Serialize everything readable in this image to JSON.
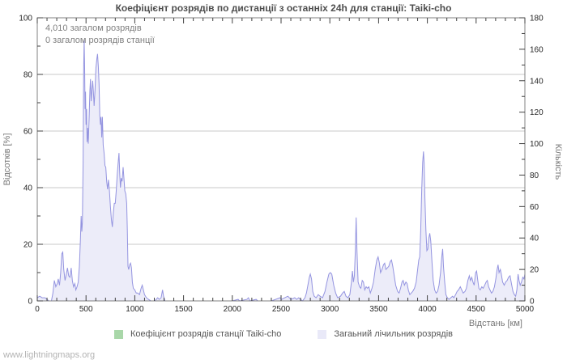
{
  "title": "Коефіцієнт розрядів по дистанції з останніх 24h для станції: Taiki-cho",
  "annotations": [
    "4,010 загалом розрядів",
    "0 загалом розрядів станції"
  ],
  "footer": {
    "link": "www.lightningmaps.org"
  },
  "legend": [
    {
      "label": "Коефіцієнт розрядів станції Taiki-cho",
      "color": "#a9d7a9"
    },
    {
      "label": "Загаьний лічильник розрядів",
      "color": "#e9e9f8"
    }
  ],
  "chart_data": {
    "type": "area",
    "title": "Коефіцієнт розрядів по дистанції з останніх 24h для станції: Taiki-cho",
    "xlabel": "Відстань  [км]",
    "ylabel": "Відсотків  [%]",
    "y2label": "Кількість",
    "xlim": [
      0,
      5000
    ],
    "x_major": 500,
    "x_minor": 100,
    "ylim": [
      0,
      100
    ],
    "y_major": 20,
    "y_minor": 10,
    "y2lim": [
      0,
      180
    ],
    "y2_major": 20,
    "y2_minor": 10,
    "grid": "horizontal-major-left-axis",
    "legend_position": "bottom-center",
    "colors": {
      "line": "#9494e0",
      "fill": "#ececf9",
      "grid": "#c9c9c9",
      "frame": "#808080",
      "tick": "#404040",
      "tick_label": "#262626"
    },
    "series": [
      {
        "name": "Коефіцієнт розрядів станції Taiki-cho",
        "axis": "left",
        "color": "#a9d7a9",
        "points": []
      },
      {
        "name": "Загаьний лічильник розрядів",
        "axis": "right",
        "color": "#9494e0",
        "points": [
          [
            0,
            2
          ],
          [
            25,
            3
          ],
          [
            50,
            2
          ],
          [
            80,
            2
          ],
          [
            100,
            1
          ],
          [
            120,
            0
          ],
          [
            145,
            0
          ],
          [
            160,
            5
          ],
          [
            175,
            13
          ],
          [
            190,
            9
          ],
          [
            205,
            11
          ],
          [
            215,
            14
          ],
          [
            228,
            10
          ],
          [
            240,
            18
          ],
          [
            252,
            30
          ],
          [
            262,
            31
          ],
          [
            272,
            20
          ],
          [
            285,
            13
          ],
          [
            298,
            17
          ],
          [
            310,
            21
          ],
          [
            322,
            16
          ],
          [
            335,
            15
          ],
          [
            348,
            21
          ],
          [
            360,
            13
          ],
          [
            372,
            9
          ],
          [
            385,
            11
          ],
          [
            395,
            7
          ],
          [
            408,
            9
          ],
          [
            420,
            12
          ],
          [
            432,
            22
          ],
          [
            442,
            38
          ],
          [
            450,
            54
          ],
          [
            457,
            44
          ],
          [
            463,
            50
          ],
          [
            470,
            88
          ],
          [
            476,
            148
          ],
          [
            481,
            166
          ],
          [
            486,
            148
          ],
          [
            490,
            122
          ],
          [
            495,
            133
          ],
          [
            500,
            112
          ],
          [
            506,
            122
          ],
          [
            511,
            101
          ],
          [
            517,
            110
          ],
          [
            523,
            100
          ],
          [
            532,
            118
          ],
          [
            540,
            134
          ],
          [
            546,
            141
          ],
          [
            553,
            127
          ],
          [
            560,
            133
          ],
          [
            568,
            140
          ],
          [
            575,
            134
          ],
          [
            583,
            124
          ],
          [
            592,
            134
          ],
          [
            601,
            148
          ],
          [
            611,
            154
          ],
          [
            618,
            157
          ],
          [
            626,
            149
          ],
          [
            634,
            138
          ],
          [
            641,
            118
          ],
          [
            648,
            112
          ],
          [
            654,
            117
          ],
          [
            661,
            104
          ],
          [
            668,
            117
          ],
          [
            676,
            99
          ],
          [
            685,
            94
          ],
          [
            694,
            86
          ],
          [
            703,
            85
          ],
          [
            712,
            76
          ],
          [
            721,
            71
          ],
          [
            730,
            77
          ],
          [
            740,
            70
          ],
          [
            750,
            60
          ],
          [
            760,
            52
          ],
          [
            770,
            47
          ],
          [
            780,
            56
          ],
          [
            790,
            62
          ],
          [
            800,
            62
          ],
          [
            810,
            70
          ],
          [
            820,
            80
          ],
          [
            830,
            88
          ],
          [
            838,
            94
          ],
          [
            846,
            80
          ],
          [
            853,
            72
          ],
          [
            861,
            78
          ],
          [
            870,
            76
          ],
          [
            880,
            85
          ],
          [
            889,
            78
          ],
          [
            898,
            70
          ],
          [
            908,
            68
          ],
          [
            917,
            62
          ],
          [
            924,
            45
          ],
          [
            930,
            22
          ],
          [
            938,
            20
          ],
          [
            948,
            23
          ],
          [
            957,
            24
          ],
          [
            966,
            21
          ],
          [
            975,
            12
          ],
          [
            985,
            8
          ],
          [
            1000,
            7
          ],
          [
            1015,
            5
          ],
          [
            1030,
            5
          ],
          [
            1048,
            4
          ],
          [
            1065,
            8
          ],
          [
            1076,
            10
          ],
          [
            1088,
            7
          ],
          [
            1100,
            4
          ],
          [
            1120,
            2
          ],
          [
            1140,
            1
          ],
          [
            1165,
            0
          ],
          [
            1200,
            0
          ],
          [
            1220,
            1
          ],
          [
            1235,
            2
          ],
          [
            1250,
            1
          ],
          [
            1270,
            2
          ],
          [
            1285,
            7
          ],
          [
            1295,
            3
          ],
          [
            1310,
            0
          ],
          [
            1600,
            0
          ],
          [
            2000,
            0
          ],
          [
            2060,
            1
          ],
          [
            2075,
            0
          ],
          [
            2150,
            1
          ],
          [
            2165,
            2
          ],
          [
            2180,
            0
          ],
          [
            2245,
            1
          ],
          [
            2260,
            0
          ],
          [
            2400,
            0
          ],
          [
            2490,
            2
          ],
          [
            2505,
            1
          ],
          [
            2570,
            3
          ],
          [
            2585,
            2
          ],
          [
            2600,
            1
          ],
          [
            2640,
            2
          ],
          [
            2660,
            1
          ],
          [
            2680,
            2
          ],
          [
            2700,
            1
          ],
          [
            2720,
            0
          ],
          [
            2745,
            2
          ],
          [
            2760,
            5
          ],
          [
            2775,
            10
          ],
          [
            2790,
            15
          ],
          [
            2800,
            17
          ],
          [
            2812,
            14
          ],
          [
            2825,
            6
          ],
          [
            2840,
            3
          ],
          [
            2860,
            2
          ],
          [
            2880,
            4
          ],
          [
            2900,
            3
          ],
          [
            2925,
            2
          ],
          [
            2950,
            6
          ],
          [
            2970,
            12
          ],
          [
            2990,
            17
          ],
          [
            3005,
            18
          ],
          [
            3020,
            17
          ],
          [
            3040,
            10
          ],
          [
            3060,
            5
          ],
          [
            3080,
            2
          ],
          [
            3110,
            3
          ],
          [
            3130,
            5
          ],
          [
            3148,
            6
          ],
          [
            3165,
            3
          ],
          [
            3185,
            2
          ],
          [
            3205,
            4
          ],
          [
            3222,
            12
          ],
          [
            3232,
            19
          ],
          [
            3242,
            12
          ],
          [
            3252,
            16
          ],
          [
            3262,
            32
          ],
          [
            3270,
            53
          ],
          [
            3278,
            32
          ],
          [
            3290,
            12
          ],
          [
            3305,
            9
          ],
          [
            3318,
            8
          ],
          [
            3332,
            13
          ],
          [
            3345,
            12
          ],
          [
            3358,
            7
          ],
          [
            3372,
            9
          ],
          [
            3385,
            8
          ],
          [
            3400,
            9
          ],
          [
            3415,
            5
          ],
          [
            3432,
            8
          ],
          [
            3448,
            12
          ],
          [
            3465,
            20
          ],
          [
            3482,
            26
          ],
          [
            3495,
            28
          ],
          [
            3508,
            24
          ],
          [
            3520,
            18
          ],
          [
            3535,
            20
          ],
          [
            3550,
            23
          ],
          [
            3562,
            24
          ],
          [
            3575,
            20
          ],
          [
            3590,
            21
          ],
          [
            3605,
            22
          ],
          [
            3620,
            25
          ],
          [
            3632,
            26
          ],
          [
            3645,
            22
          ],
          [
            3660,
            16
          ],
          [
            3675,
            10
          ],
          [
            3695,
            6
          ],
          [
            3710,
            5
          ],
          [
            3725,
            8
          ],
          [
            3740,
            12
          ],
          [
            3752,
            13
          ],
          [
            3765,
            10
          ],
          [
            3780,
            12
          ],
          [
            3792,
            11
          ],
          [
            3805,
            7
          ],
          [
            3820,
            4
          ],
          [
            3835,
            5
          ],
          [
            3850,
            6
          ],
          [
            3868,
            8
          ],
          [
            3885,
            12
          ],
          [
            3900,
            20
          ],
          [
            3912,
            26
          ],
          [
            3922,
            28
          ],
          [
            3932,
            45
          ],
          [
            3942,
            70
          ],
          [
            3952,
            88
          ],
          [
            3960,
            95
          ],
          [
            3967,
            88
          ],
          [
            3975,
            65
          ],
          [
            3985,
            45
          ],
          [
            3995,
            32
          ],
          [
            4005,
            33
          ],
          [
            4015,
            40
          ],
          [
            4025,
            43
          ],
          [
            4035,
            38
          ],
          [
            4048,
            24
          ],
          [
            4060,
            13
          ],
          [
            4075,
            7
          ],
          [
            4090,
            5
          ],
          [
            4105,
            6
          ],
          [
            4120,
            10
          ],
          [
            4135,
            18
          ],
          [
            4148,
            28
          ],
          [
            4157,
            33
          ],
          [
            4165,
            22
          ],
          [
            4178,
            12
          ],
          [
            4190,
            4
          ],
          [
            4205,
            2
          ],
          [
            4222,
            1
          ],
          [
            4240,
            2
          ],
          [
            4258,
            3
          ],
          [
            4272,
            2
          ],
          [
            4290,
            4
          ],
          [
            4305,
            6
          ],
          [
            4320,
            7
          ],
          [
            4338,
            9
          ],
          [
            4352,
            7
          ],
          [
            4368,
            5
          ],
          [
            4385,
            6
          ],
          [
            4400,
            8
          ],
          [
            4415,
            13
          ],
          [
            4430,
            16
          ],
          [
            4442,
            13
          ],
          [
            4455,
            15
          ],
          [
            4468,
            12
          ],
          [
            4480,
            10
          ],
          [
            4495,
            18
          ],
          [
            4505,
            19
          ],
          [
            4515,
            14
          ],
          [
            4528,
            8
          ],
          [
            4542,
            7
          ],
          [
            4558,
            9
          ],
          [
            4572,
            8
          ],
          [
            4588,
            10
          ],
          [
            4602,
            12
          ],
          [
            4615,
            13
          ],
          [
            4628,
            9
          ],
          [
            4642,
            7
          ],
          [
            4658,
            5
          ],
          [
            4672,
            6
          ],
          [
            4688,
            9
          ],
          [
            4702,
            14
          ],
          [
            4715,
            20
          ],
          [
            4725,
            23
          ],
          [
            4735,
            18
          ],
          [
            4748,
            20
          ],
          [
            4758,
            17
          ],
          [
            4772,
            12
          ],
          [
            4788,
            10
          ],
          [
            4802,
            12
          ],
          [
            4818,
            13
          ],
          [
            4832,
            15
          ],
          [
            4848,
            16
          ],
          [
            4862,
            11
          ],
          [
            4878,
            6
          ],
          [
            4892,
            4
          ],
          [
            4905,
            3
          ],
          [
            4918,
            7
          ],
          [
            4930,
            17
          ],
          [
            4940,
            13
          ],
          [
            4952,
            10
          ],
          [
            4965,
            12
          ],
          [
            4978,
            15
          ],
          [
            4990,
            14
          ],
          [
            5000,
            17
          ]
        ]
      }
    ]
  }
}
